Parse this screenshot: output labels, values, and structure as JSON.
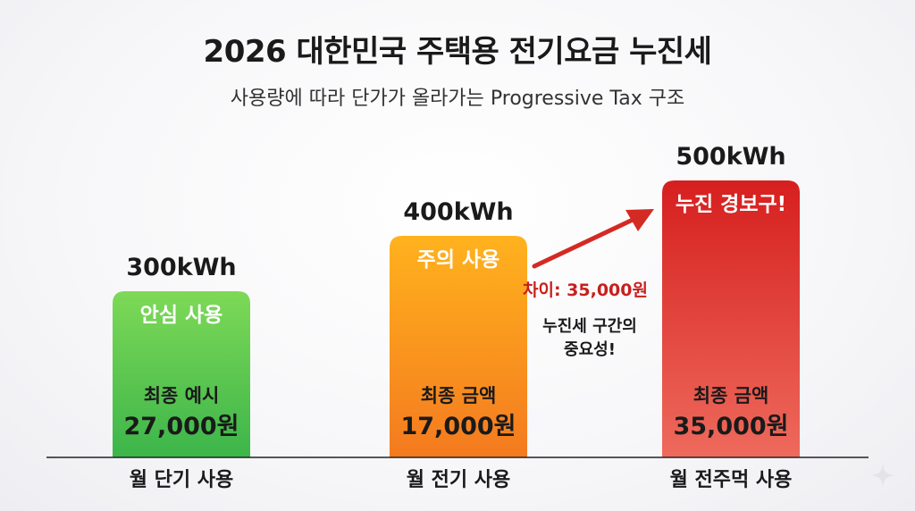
{
  "title": "2026 대한민국 주택용 전기요금 누진세",
  "subtitle": "사용량에 따라 단가가 올라가는 Progressive Tax 구조",
  "chart_data": {
    "type": "bar",
    "categories": [
      "월 단기 사용",
      "월 전기 사용",
      "월 전주먹 사용"
    ],
    "values": [
      300,
      400,
      500
    ],
    "unit": "kWh",
    "value_labels": [
      "300kWh",
      "400kWh",
      "500kWh"
    ],
    "status_labels": [
      "안심 사용",
      "주의 사용",
      "누진 경보구!"
    ],
    "amount_labels": [
      "최종 예시",
      "최종 금액",
      "최종 금액"
    ],
    "amounts": [
      "27,000원",
      "17,000원",
      "35,000원"
    ],
    "colors": [
      [
        "#7ed957",
        "#3cb54a"
      ],
      [
        "#ffb21e",
        "#f47a1f"
      ],
      [
        "#d61f1f",
        "#ee6a5c"
      ]
    ],
    "annotation": {
      "difference": "차이: 35,000원",
      "note_line1": "누진세 구간의",
      "note_line2": "중요성!",
      "arrow_color": "#d42a24"
    }
  }
}
